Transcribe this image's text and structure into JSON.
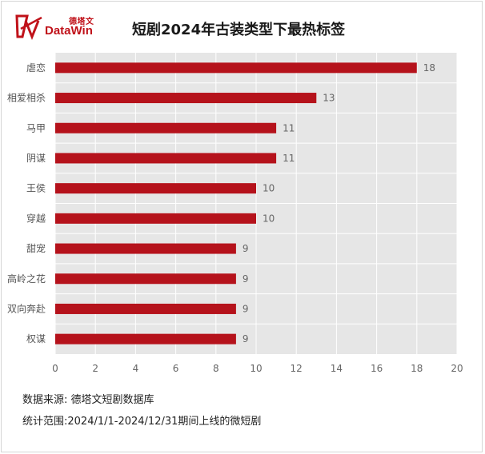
{
  "brand": {
    "name_cn": "德塔文",
    "name_en": "DataWin",
    "accent": "#c0121a"
  },
  "chart_data": {
    "type": "bar",
    "orientation": "horizontal",
    "title": "短剧2024年古装类型下最热标签",
    "categories": [
      "虐恋",
      "相爱相杀",
      "马甲",
      "阴谋",
      "王侯",
      "穿越",
      "甜宠",
      "高岭之花",
      "双向奔赴",
      "权谋"
    ],
    "values": [
      18,
      13,
      11,
      11,
      10,
      10,
      9,
      9,
      9,
      9
    ],
    "xlim": [
      0,
      20
    ],
    "xticks": [
      "0",
      "2",
      "4",
      "6",
      "8",
      "10",
      "12",
      "14",
      "16",
      "18",
      "20"
    ],
    "grid": true,
    "bar_color": "#b5121b",
    "plot_background": "#e6e6e6"
  },
  "footer": {
    "source": "数据来源: 德塔文短剧数据库",
    "range": "统计范围:2024/1/1-2024/12/31期间上线的微短剧"
  }
}
